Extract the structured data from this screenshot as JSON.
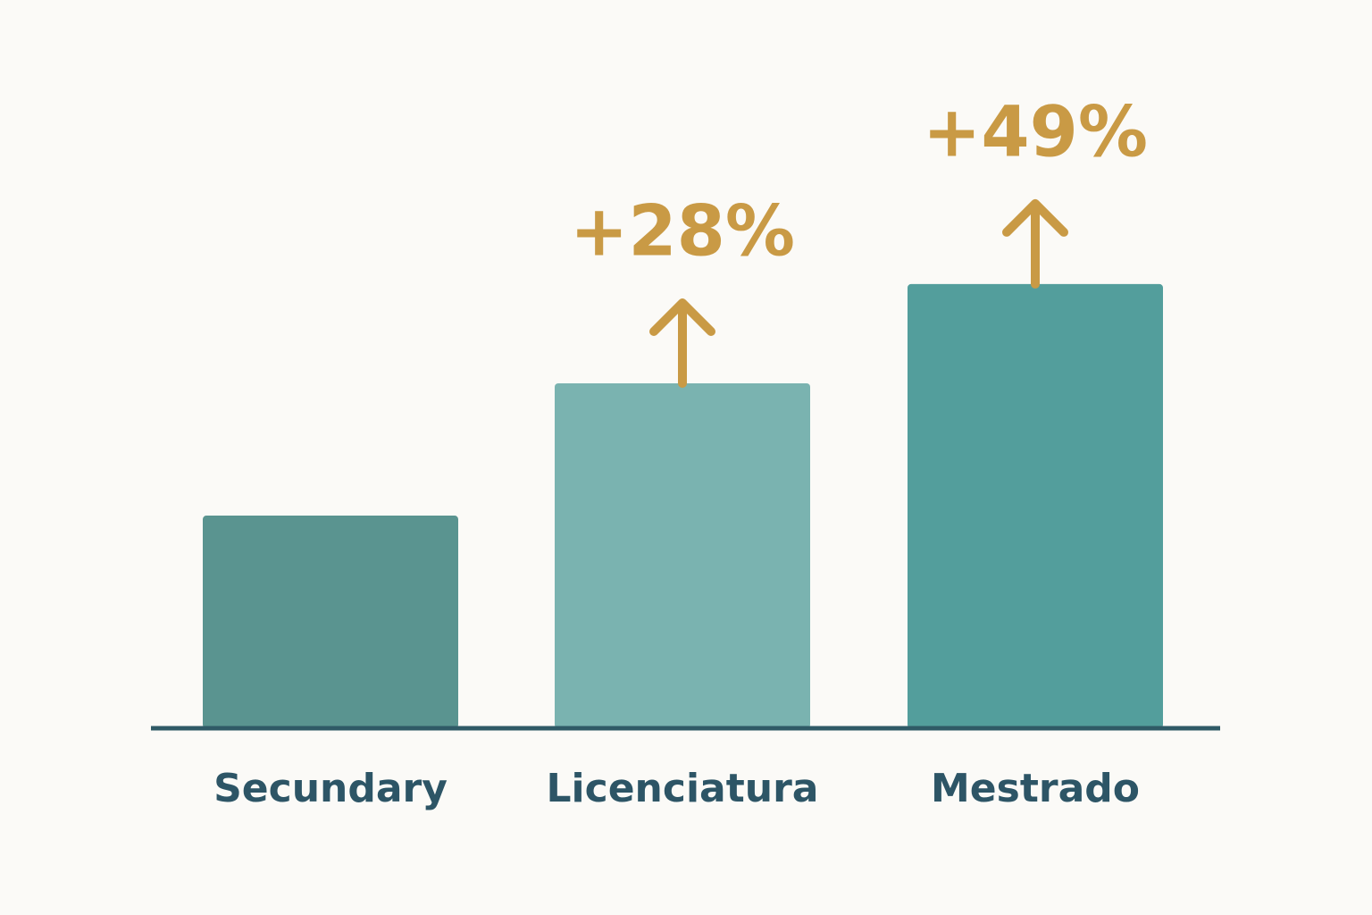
{
  "chart_data": {
    "type": "bar",
    "categories": [
      "Secundary",
      "Licenciatura",
      "Mestrado"
    ],
    "values": [
      0,
      28,
      49
    ],
    "value_labels": [
      null,
      "+28%",
      "+49%"
    ],
    "colors": [
      "#5a9490",
      "#7ab3b0",
      "#539e9c"
    ],
    "label_color": "#c99a45",
    "ylim": [
      -45,
      80
    ],
    "grid": false
  }
}
